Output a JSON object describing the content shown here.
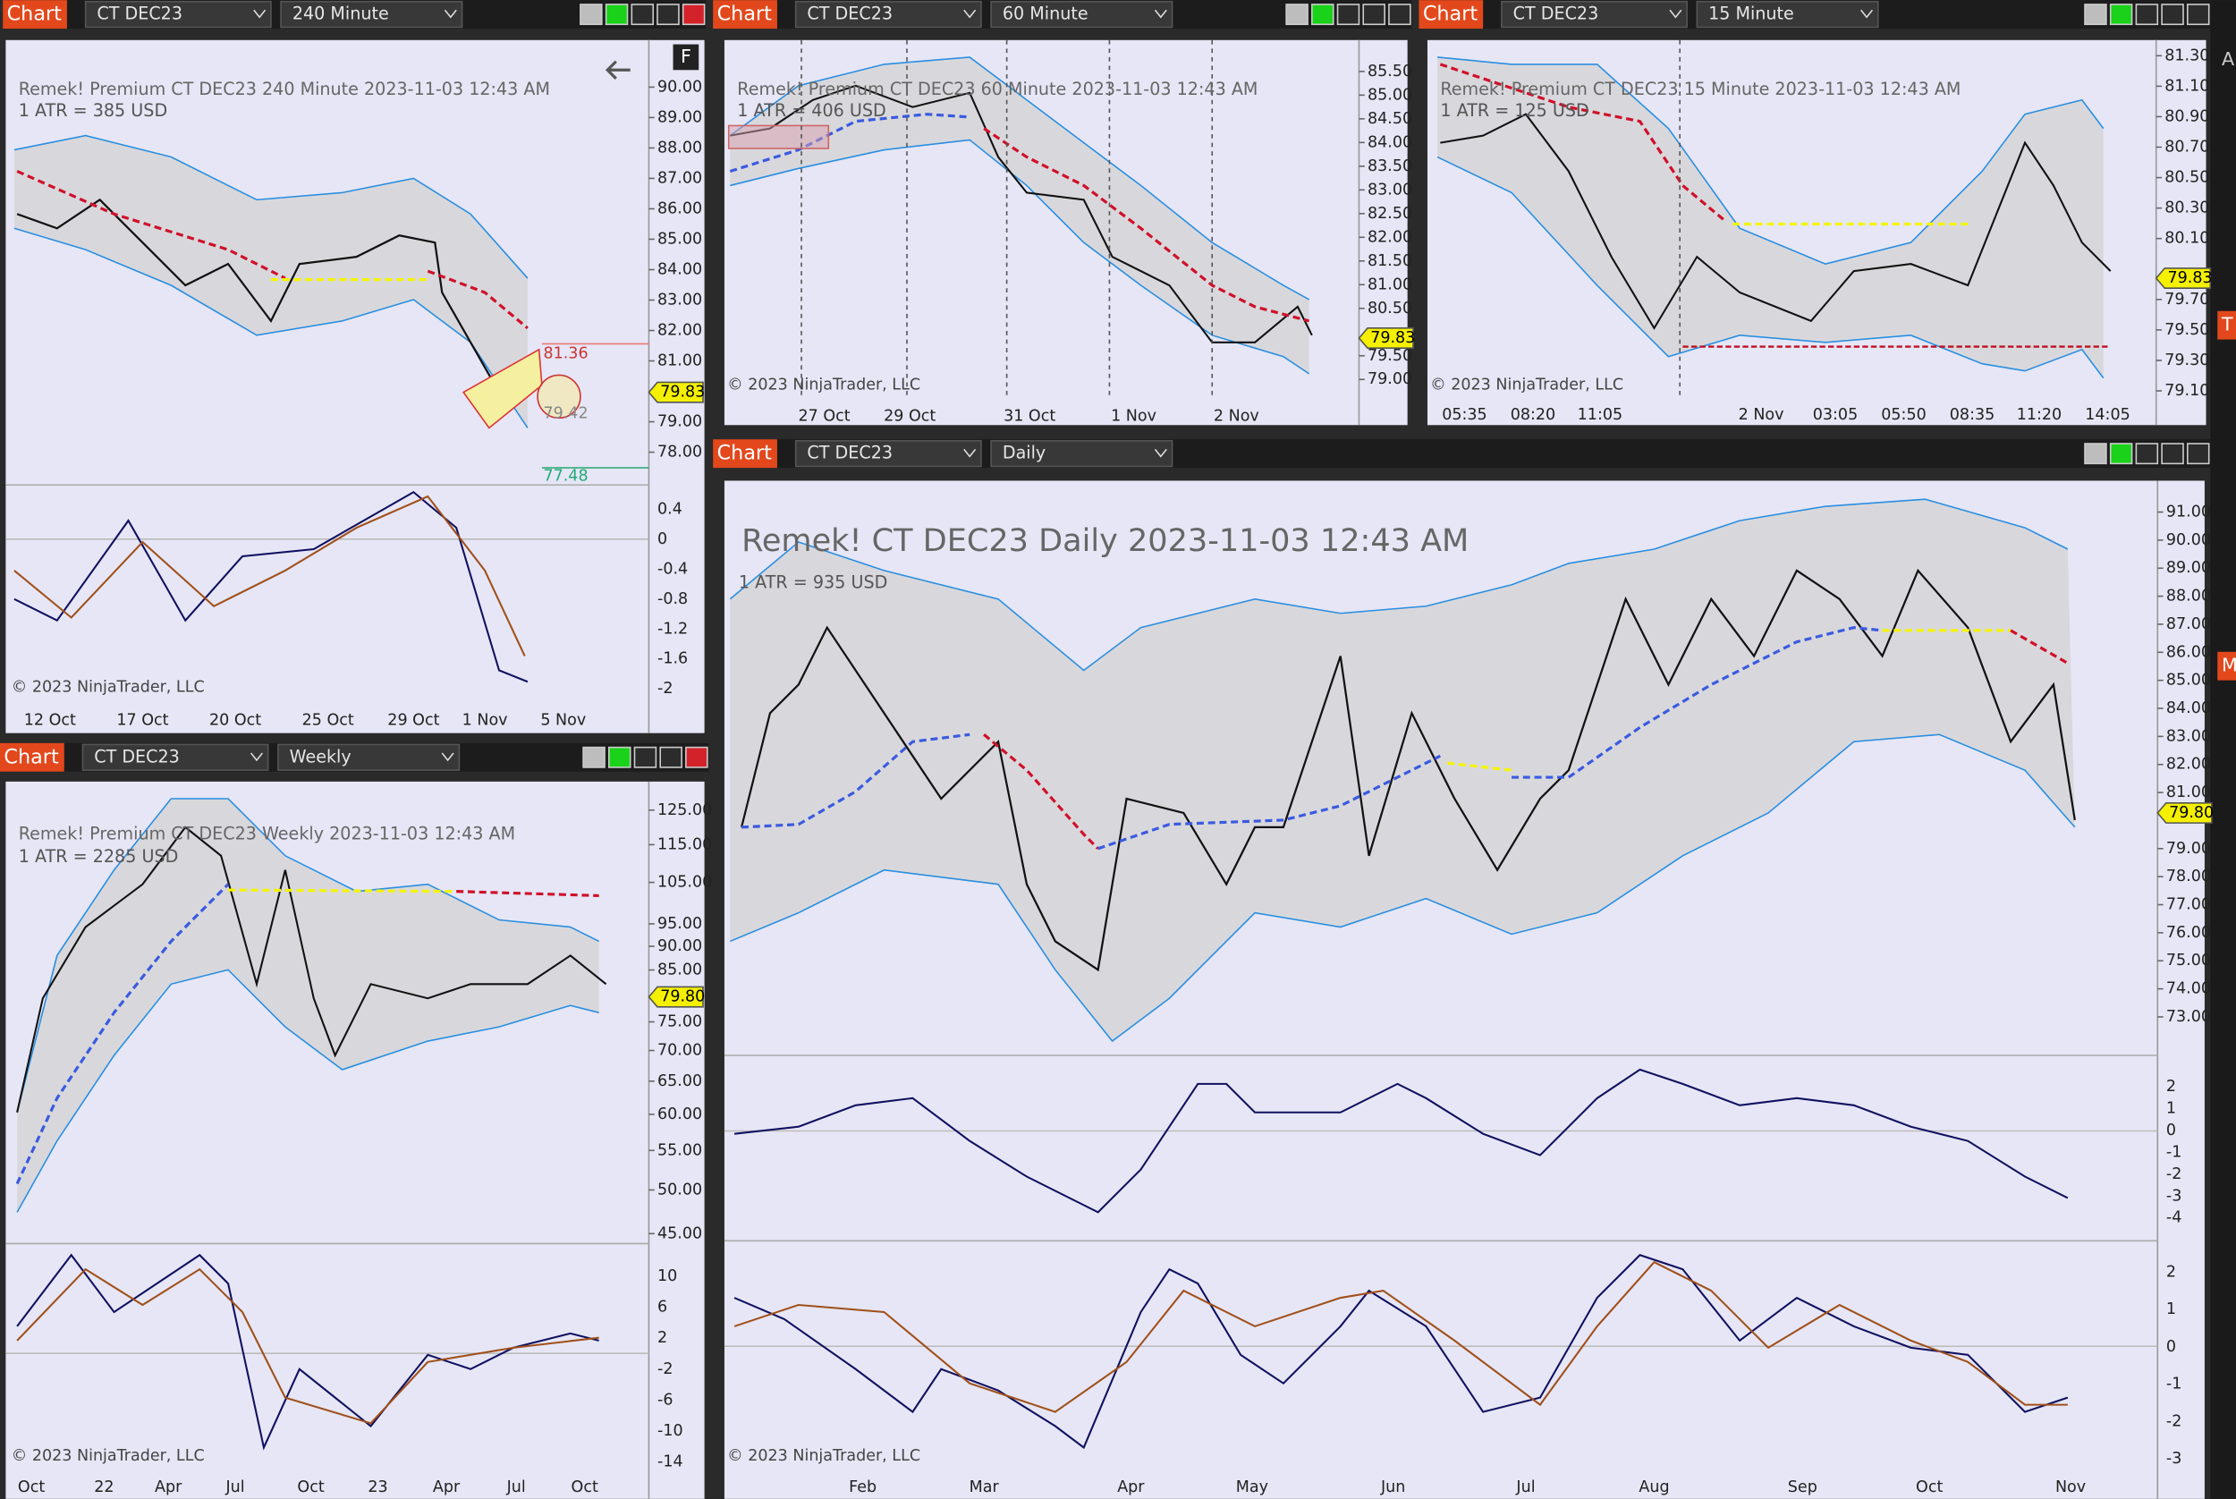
{
  "panels": [
    {
      "toolbar": {
        "tab": "Chart",
        "instrument": "CT DEC23",
        "interval": "240 Minute"
      },
      "title": "Remek!  Premium  CT DEC23  240 Minute  2023-11-03 12:43 AM",
      "atr": "1 ATR = 385 USD",
      "copyright": "© 2023 NinjaTrader, LLC",
      "price_ticks": [
        "90.00",
        "89.00",
        "88.00",
        "87.00",
        "86.00",
        "85.00",
        "84.00",
        "83.00",
        "82.00",
        "81.00",
        "79.00",
        "78.00"
      ],
      "last_price": "79.83",
      "indicator_ticks": [
        "0.4",
        "0",
        "-0.4",
        "-0.8",
        "-1.2",
        "-1.6",
        "-2"
      ],
      "x_labels": [
        "12 Oct",
        "17 Oct",
        "20 Oct",
        "25 Oct",
        "29 Oct",
        "1 Nov",
        "5 Nov"
      ],
      "annotations": [
        "81.36",
        "79.42",
        "77.48"
      ],
      "button": "F"
    },
    {
      "toolbar": {
        "tab": "Chart",
        "instrument": "CT DEC23",
        "interval": "60 Minute"
      },
      "title": "Remek!  Premium  CT DEC23  60 Minute  2023-11-03 12:43 AM",
      "atr": "1 ATR = 406 USD",
      "copyright": "© 2023 NinjaTrader, LLC",
      "price_ticks": [
        "85.50",
        "85.00",
        "84.50",
        "84.00",
        "83.50",
        "83.00",
        "82.50",
        "82.00",
        "81.50",
        "81.00",
        "80.50",
        "79.50",
        "79.00"
      ],
      "last_price": "79.83",
      "x_labels": [
        "27 Oct",
        "29 Oct",
        "31 Oct",
        "1 Nov",
        "2 Nov"
      ]
    },
    {
      "toolbar": {
        "tab": "Chart",
        "instrument": "CT DEC23",
        "interval": "15 Minute"
      },
      "title": "Remek!  Premium  CT DEC23  15 Minute  2023-11-03 12:43 AM",
      "atr": "1 ATR = 125 USD",
      "copyright": "© 2023 NinjaTrader, LLC",
      "price_ticks": [
        "81.30",
        "81.10",
        "80.90",
        "80.70",
        "80.50",
        "80.30",
        "80.10",
        "79.70",
        "79.50",
        "79.30",
        "79.10"
      ],
      "last_price": "79.83",
      "x_labels": [
        "05:35",
        "08:20",
        "11:05",
        "2 Nov",
        "03:05",
        "05:50",
        "08:35",
        "11:20",
        "14:05"
      ]
    },
    {
      "toolbar": {
        "tab": "Chart",
        "instrument": "CT DEC23",
        "interval": "Weekly"
      },
      "title": "Remek!  Premium  CT DEC23  Weekly  2023-11-03 12:43 AM",
      "atr": "1 ATR = 2285 USD",
      "copyright": "© 2023 NinjaTrader, LLC",
      "price_ticks": [
        "125.00",
        "115.00",
        "105.00",
        "95.00",
        "90.00",
        "85.00",
        "75.00",
        "70.00",
        "65.00",
        "60.00",
        "55.00",
        "50.00",
        "45.00"
      ],
      "last_price": "79.80",
      "indicator_ticks": [
        "10",
        "6",
        "2",
        "-2",
        "-6",
        "-10",
        "-14"
      ],
      "x_labels": [
        "Oct",
        "22",
        "Apr",
        "Jul",
        "Oct",
        "23",
        "Apr",
        "Jul",
        "Oct"
      ]
    },
    {
      "toolbar": {
        "tab": "Chart",
        "instrument": "CT DEC23",
        "interval": "Daily"
      },
      "title": "Remek!  CT DEC23  Daily  2023-11-03 12:43 AM",
      "atr": "1 ATR = 935 USD",
      "copyright": "© 2023 NinjaTrader, LLC",
      "price_ticks": [
        "91.00",
        "90.00",
        "89.00",
        "88.00",
        "87.00",
        "86.00",
        "85.00",
        "84.00",
        "83.00",
        "82.00",
        "81.00",
        "79.00",
        "78.00",
        "77.00",
        "76.00",
        "75.00",
        "74.00",
        "73.00"
      ],
      "last_price": "79.80",
      "macd_ticks": [
        "2",
        "1",
        "0",
        "-1",
        "-2",
        "-3",
        "-4"
      ],
      "indicator_ticks": [
        "2",
        "1",
        "0",
        "-1",
        "-2",
        "-3"
      ],
      "x_labels": [
        "Feb",
        "Mar",
        "Apr",
        "May",
        "Jun",
        "Jul",
        "Aug",
        "Sep",
        "Oct",
        "Nov"
      ]
    }
  ],
  "edge_labels": [
    "A",
    "T",
    "M"
  ]
}
